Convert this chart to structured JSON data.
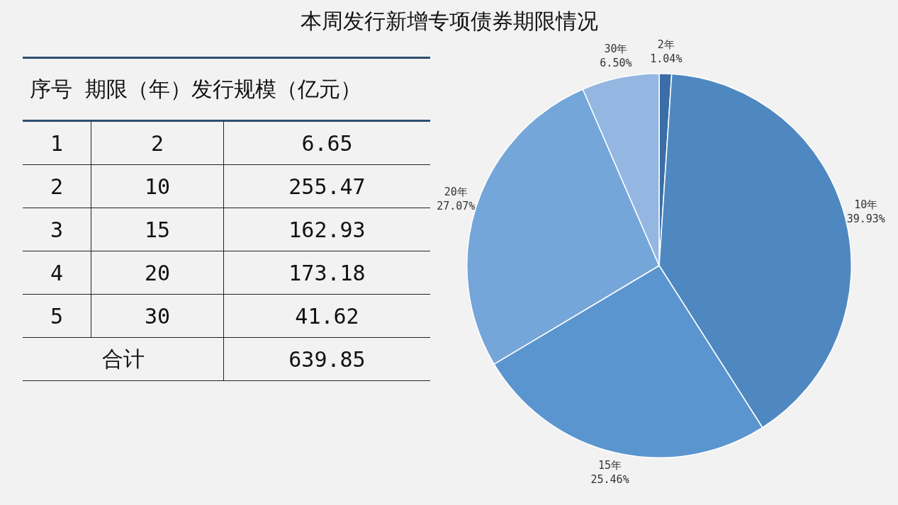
{
  "chart_data": {
    "type": "pie",
    "title": "本周发行新增专项债券期限情况",
    "categories": [
      "2年",
      "10年",
      "15年",
      "20年",
      "30年"
    ],
    "values": [
      1.04,
      39.93,
      25.46,
      27.07,
      6.5
    ],
    "colors": [
      "#3b6ea6",
      "#4f88c0",
      "#5b95cf",
      "#75a6da",
      "#94b7e1"
    ],
    "value_labels": [
      "1.04%",
      "39.93%",
      "25.46%",
      "27.07%",
      "6.50%"
    ],
    "totals": [
      "639.85"
    ],
    "annotations": [
      "序号",
      "期限（年）",
      "发行规模（亿元）",
      "1",
      "2",
      "6.65",
      "2",
      "10",
      "255.47",
      "3",
      "15",
      "162.93",
      "4",
      "20",
      "173.18",
      "5",
      "30",
      "41.62",
      "合计"
    ],
    "legend": false
  }
}
